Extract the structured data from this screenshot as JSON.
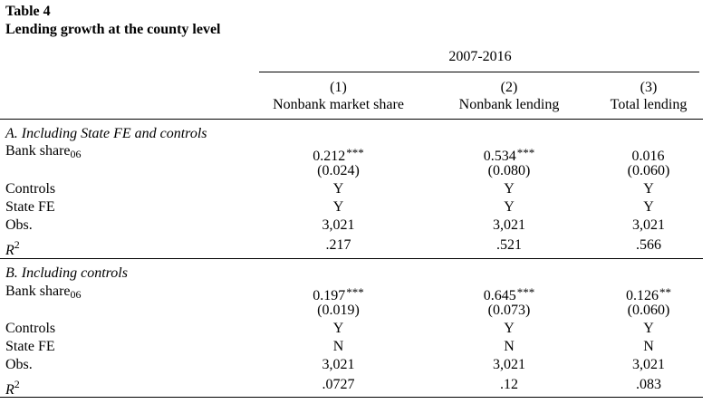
{
  "caption": {
    "number": "Table 4",
    "title": "Lending growth at the county level"
  },
  "period": "2007-2016",
  "columns": [
    {
      "num": "(1)",
      "name": "Nonbank market share"
    },
    {
      "num": "(2)",
      "name": "Nonbank lending"
    },
    {
      "num": "(3)",
      "name": "Total lending"
    }
  ],
  "panels": [
    {
      "title": "A. Including State FE and controls",
      "bank_share_label": "Bank share",
      "bank_share_sub": "06",
      "coef": [
        {
          "v": "0.212",
          "s": "***"
        },
        {
          "v": "0.534",
          "s": "***"
        },
        {
          "v": "0.016",
          "s": ""
        }
      ],
      "se": [
        "(0.024)",
        "(0.080)",
        "(0.060)"
      ],
      "controls_label": "Controls",
      "controls": [
        "Y",
        "Y",
        "Y"
      ],
      "statefe_label": "State FE",
      "statefe": [
        "Y",
        "Y",
        "Y"
      ],
      "obs_label": "Obs.",
      "obs": [
        "3,021",
        "3,021",
        "3,021"
      ],
      "r2_label": "R",
      "r2_sup": "2",
      "r2": [
        ".217",
        ".521",
        ".566"
      ]
    },
    {
      "title": "B. Including controls",
      "bank_share_label": "Bank share",
      "bank_share_sub": "06",
      "coef": [
        {
          "v": "0.197",
          "s": "***"
        },
        {
          "v": "0.645",
          "s": "***"
        },
        {
          "v": "0.126",
          "s": "**"
        }
      ],
      "se": [
        "(0.019)",
        "(0.073)",
        "(0.060)"
      ],
      "controls_label": "Controls",
      "controls": [
        "Y",
        "Y",
        "Y"
      ],
      "statefe_label": "State FE",
      "statefe": [
        "N",
        "N",
        "N"
      ],
      "obs_label": "Obs.",
      "obs": [
        "3,021",
        "3,021",
        "3,021"
      ],
      "r2_label": "R",
      "r2_sup": "2",
      "r2": [
        ".0727",
        ".12",
        ".083"
      ]
    }
  ]
}
